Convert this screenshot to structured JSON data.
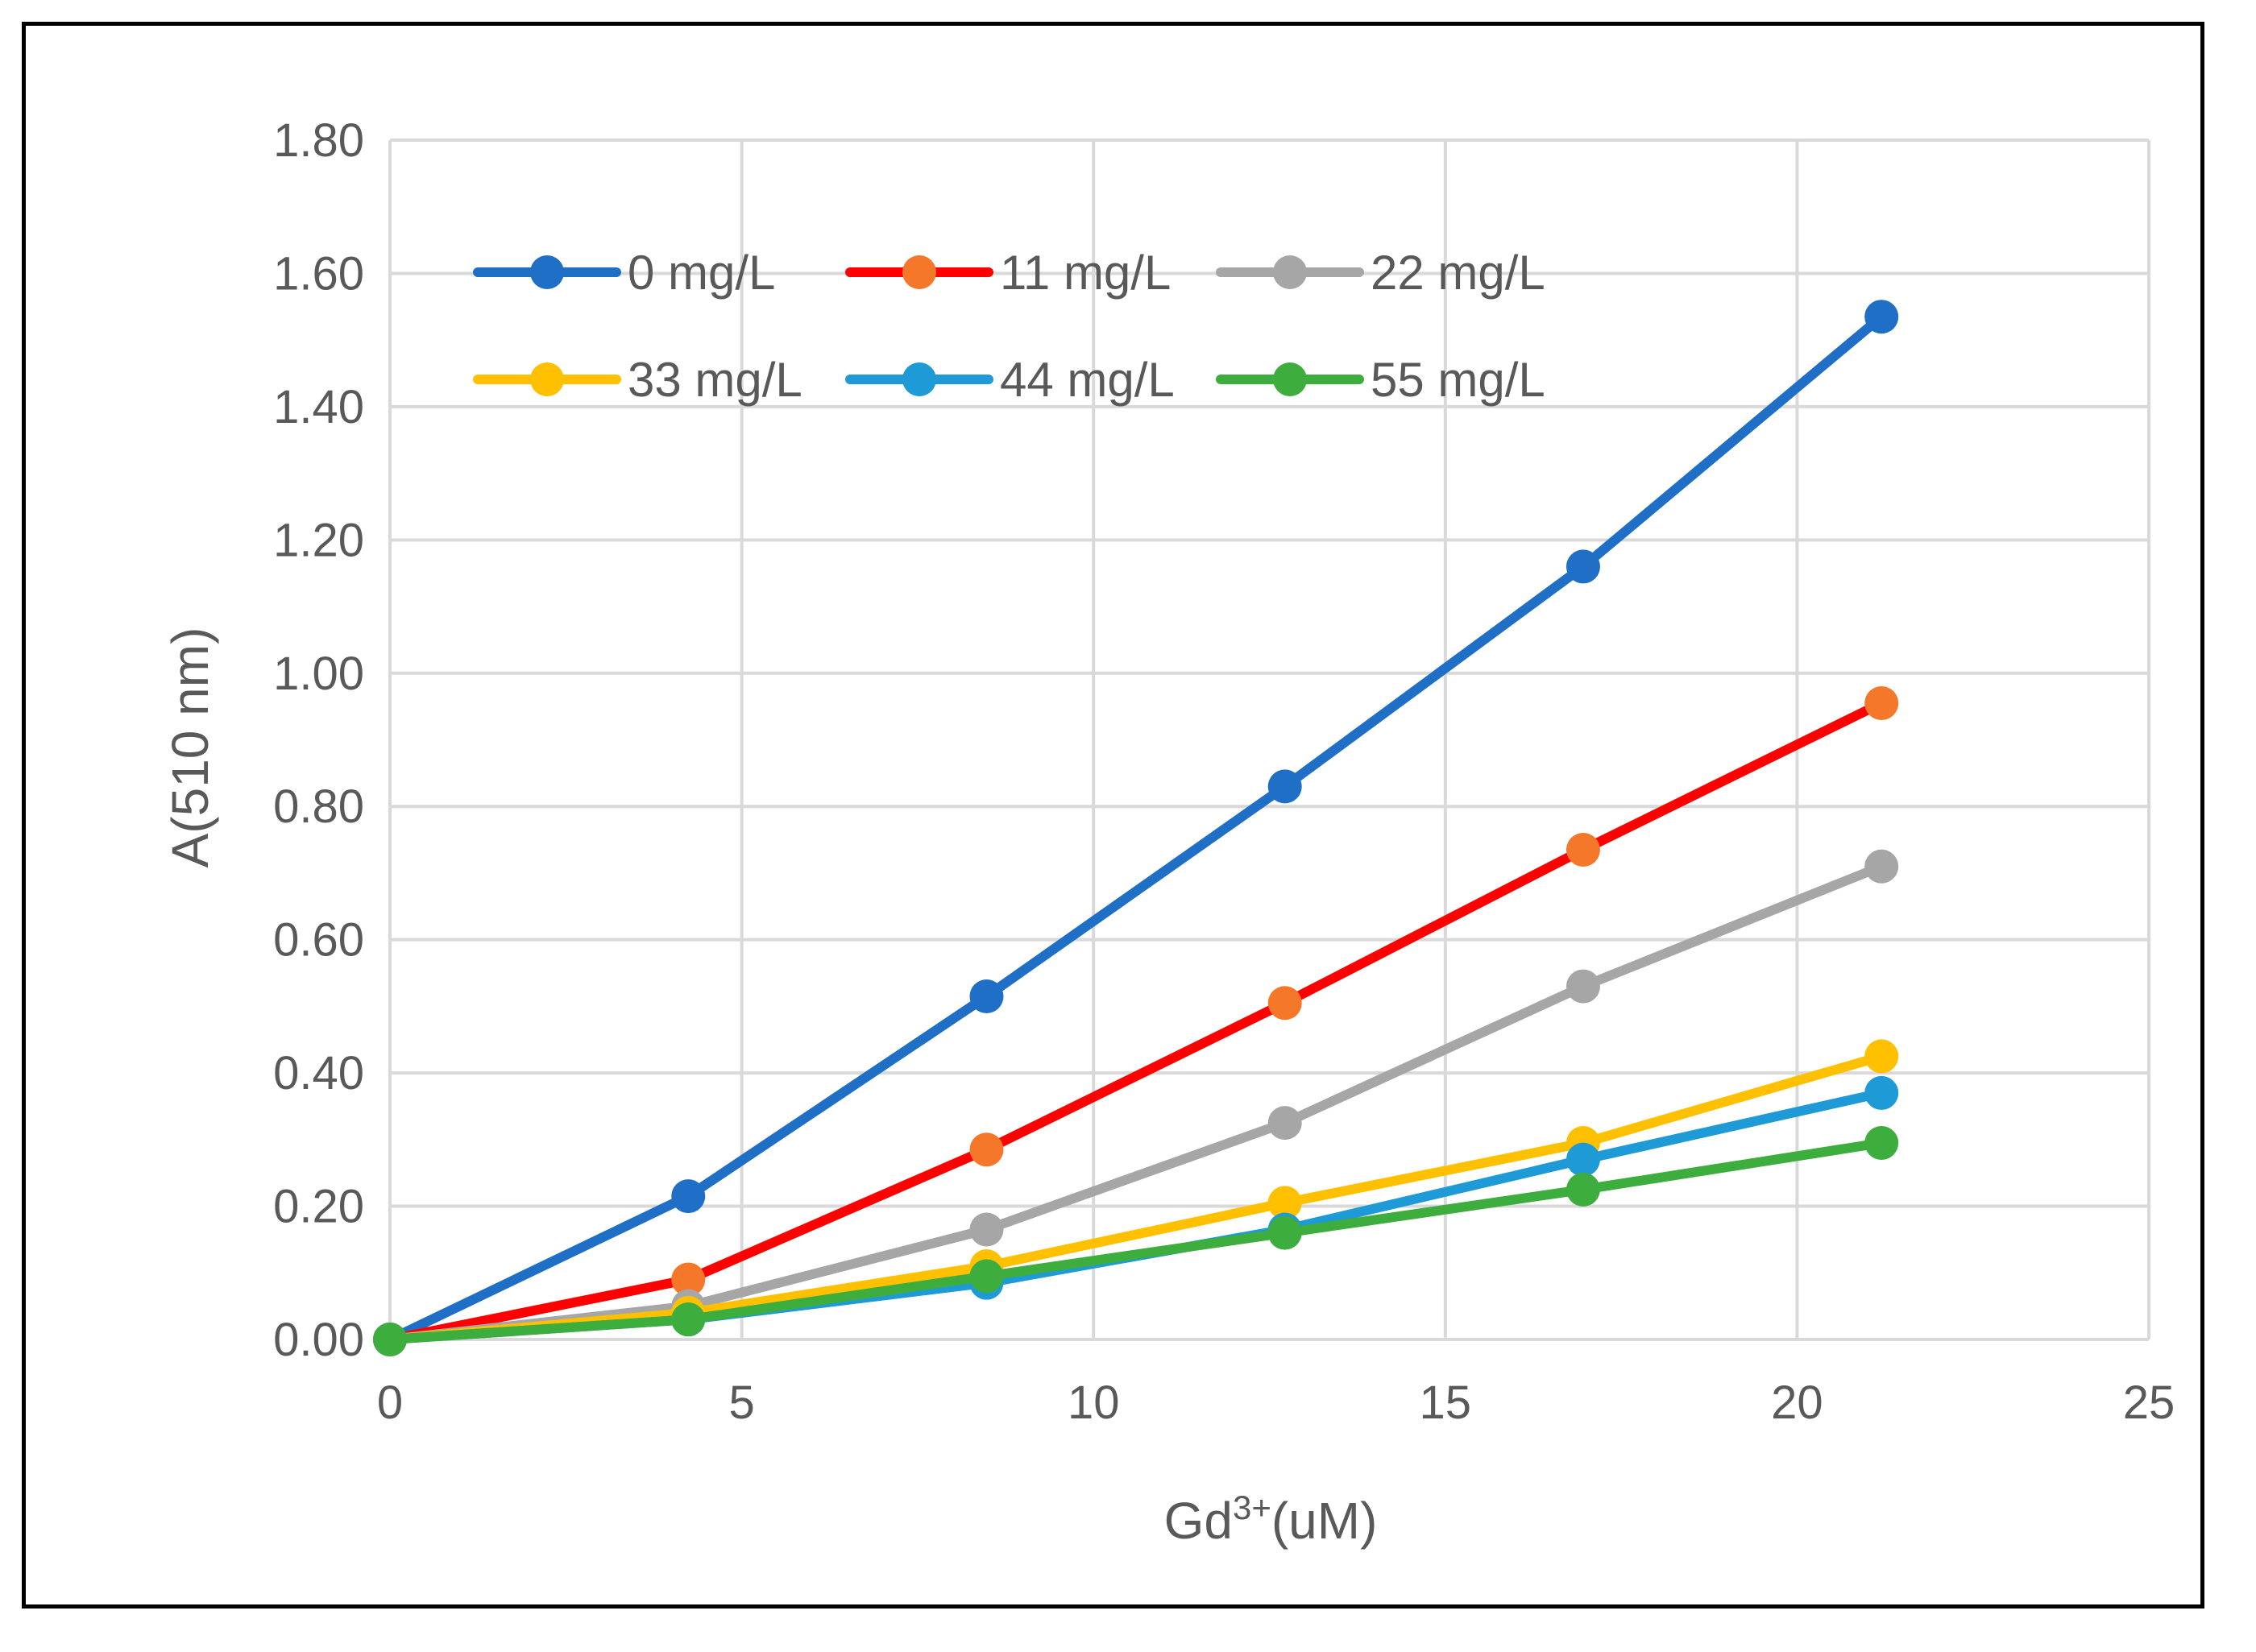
{
  "chart_data": {
    "type": "line",
    "title": "",
    "xlabel": "Gd",
    "xlabel_superscript": "3+",
    "xlabel_suffix": "(uM)",
    "ylabel": "A(510 nm)",
    "xlim": [
      0,
      25
    ],
    "ylim": [
      0,
      1.8
    ],
    "x_ticks": [
      "0",
      "5",
      "10",
      "15",
      "20",
      "25"
    ],
    "y_ticks": [
      "0.00",
      "0.20",
      "0.40",
      "0.60",
      "0.80",
      "1.00",
      "1.20",
      "1.40",
      "1.60",
      "1.80"
    ],
    "grid": true,
    "legend_position": "top-left",
    "x": [
      0,
      4.24,
      8.48,
      12.72,
      16.96,
      21.2
    ],
    "series": [
      {
        "name": "0 mg/L",
        "line_color": "#1F6FC6",
        "marker_color": "#1F6FC6",
        "values": [
          0,
          0.215,
          0.515,
          0.83,
          1.16,
          1.535
        ]
      },
      {
        "name": "11 mg/L",
        "line_color": "#FF0000",
        "marker_color": "#F5782A",
        "values": [
          0,
          0.09,
          0.285,
          0.505,
          0.735,
          0.955
        ]
      },
      {
        "name": "22 mg/L",
        "line_color": "#A6A6A6",
        "marker_color": "#A6A6A6",
        "values": [
          0,
          0.05,
          0.165,
          0.325,
          0.53,
          0.71
        ]
      },
      {
        "name": "33 mg/L",
        "line_color": "#FFC000",
        "marker_color": "#FFC000",
        "values": [
          0,
          0.04,
          0.11,
          0.205,
          0.295,
          0.425
        ]
      },
      {
        "name": "44 mg/L",
        "line_color": "#1E9AD6",
        "marker_color": "#1E9AD6",
        "values": [
          0,
          0.03,
          0.085,
          0.165,
          0.27,
          0.37
        ]
      },
      {
        "name": "55 mg/L",
        "line_color": "#3DAE3D",
        "marker_color": "#3DAE3D",
        "values": [
          0,
          0.03,
          0.095,
          0.16,
          0.225,
          0.295
        ]
      }
    ]
  },
  "colors": {
    "grid": "#D9D9D9",
    "text": "#595959",
    "frame": "#000000"
  }
}
